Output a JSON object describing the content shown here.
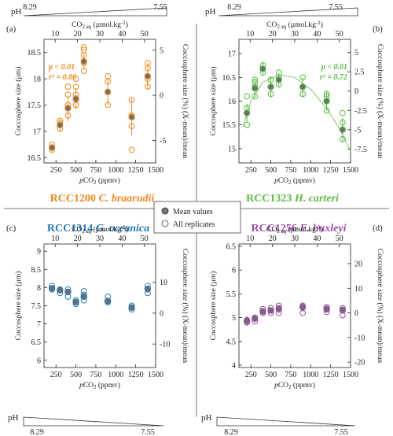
{
  "colors": {
    "orange": "#f08a1c",
    "green": "#5cba47",
    "blue": "#2a7ab8",
    "purple": "#9a4da6",
    "divider": "#777777"
  },
  "ph": {
    "label": "pH",
    "top_left": {
      "high": "8.29",
      "low": "7.55"
    },
    "top_right": {
      "high": "8.29",
      "low": "7.55"
    },
    "bottom_left": {
      "high": "8.29",
      "low": "7.55"
    },
    "bottom_right": {
      "high": "8.29",
      "low": "7.55"
    }
  },
  "legend": {
    "mean_label": "Mean values",
    "replicate_label": "All replicates"
  },
  "chart_data": [
    {
      "panel": "(a)",
      "type": "scatter",
      "color": "orange",
      "strain_code": "RCC1200",
      "species": "C. braarudii",
      "xlabel": "pCO2 (ppmv)",
      "top_xlabel": "CO2 aq (µmol.kg-1)",
      "ylabel": "Coccosphere size (µm)",
      "y2label": "Coccosphere size (%) (X-mean)/mean",
      "xlim": [
        100,
        1500
      ],
      "ylim": [
        16.4,
        18.75
      ],
      "y2lim": [
        -7.5,
        6.2
      ],
      "xticks": [
        250,
        500,
        750,
        1000,
        1250,
        1500
      ],
      "yticks": [
        16.5,
        17,
        17.5,
        18,
        18.5
      ],
      "y2ticks": [
        -5,
        0,
        5
      ],
      "top_ticks": [
        10,
        20,
        30,
        40,
        50
      ],
      "top_ticks_x": [
        340,
        700,
        1060,
        1420,
        1780
      ],
      "stats": {
        "p": "p < 0.01",
        "r2": "r² = 0.86"
      },
      "fit": "none",
      "means": {
        "x": [
          200,
          300,
          400,
          500,
          600,
          900,
          1200,
          1400
        ],
        "y": [
          16.69,
          17.12,
          17.44,
          17.62,
          18.33,
          17.75,
          17.27,
          18.05
        ],
        "err": [
          0.08,
          0.12,
          0.25,
          0.2,
          0.15,
          0.25,
          0.35,
          0.25
        ]
      },
      "replicates": {
        "x": [
          200,
          200,
          300,
          300,
          300,
          400,
          400,
          400,
          400,
          400,
          500,
          500,
          500,
          500,
          500,
          600,
          600,
          600,
          600,
          600,
          900,
          900,
          900,
          900,
          1200,
          1200,
          1200,
          1200,
          1400,
          1400,
          1400,
          1400
        ],
        "y": [
          16.65,
          16.75,
          17.05,
          17.15,
          17.2,
          17.3,
          17.45,
          17.5,
          17.7,
          17.85,
          17.5,
          17.6,
          17.7,
          17.85,
          18.0,
          18.15,
          18.3,
          18.45,
          18.55,
          18.6,
          17.5,
          17.75,
          17.95,
          18.05,
          16.65,
          17.1,
          17.3,
          17.6,
          17.85,
          18.0,
          18.2,
          18.3
        ]
      }
    },
    {
      "panel": "(b)",
      "type": "scatter",
      "color": "green",
      "strain_code": "RCC1323",
      "species": "H. carteri",
      "xlabel": "pCO2 (ppmv)",
      "top_xlabel": "CO2 aq (µmol.kg-1)",
      "ylabel": "Coccosphere size (µm)",
      "y2label": "Coccosphere size (%) (X-mean)/mean",
      "xlim": [
        100,
        1500
      ],
      "ylim": [
        14.7,
        17.3
      ],
      "y2lim": [
        -9.3,
        6.7
      ],
      "xticks": [
        250,
        500,
        750,
        1000,
        1250,
        1500
      ],
      "yticks": [
        15,
        15.5,
        16,
        16.5,
        17
      ],
      "y2ticks": [
        -7.5,
        -5,
        -2.5,
        0,
        2.5,
        5
      ],
      "top_ticks": [
        10,
        20,
        30,
        40,
        50
      ],
      "top_ticks_x": [
        340,
        700,
        1060,
        1420,
        1780
      ],
      "stats": {
        "p": "p < 0.01",
        "r2": "r² = 0.72"
      },
      "fit": "quadratic",
      "fit_curve": {
        "x": [
          150,
          250,
          400,
          600,
          800,
          1000,
          1200,
          1350,
          1500
        ],
        "y": [
          15.45,
          16.0,
          16.4,
          16.55,
          16.5,
          16.25,
          15.85,
          15.45,
          14.95
        ]
      },
      "means": {
        "x": [
          200,
          300,
          400,
          500,
          600,
          900,
          1200,
          1400
        ],
        "y": [
          15.75,
          16.27,
          16.68,
          16.3,
          16.45,
          16.3,
          16.0,
          15.4
        ],
        "err": [
          0.2,
          0.2,
          0.15,
          0.2,
          0.15,
          0.2,
          0.2,
          0.25
        ]
      },
      "replicates": {
        "x": [
          200,
          200,
          200,
          300,
          300,
          300,
          300,
          400,
          400,
          500,
          500,
          500,
          600,
          600,
          600,
          900,
          900,
          900,
          1200,
          1200,
          1200,
          1400,
          1400,
          1400,
          1400
        ],
        "y": [
          15.5,
          15.85,
          16.1,
          16.1,
          16.3,
          16.4,
          16.45,
          16.6,
          16.75,
          16.15,
          16.3,
          16.45,
          16.35,
          16.5,
          16.6,
          16.15,
          16.3,
          16.5,
          15.8,
          16.1,
          16.15,
          15.2,
          15.4,
          15.55,
          15.75
        ]
      }
    },
    {
      "panel": "(c)",
      "type": "scatter",
      "color": "blue",
      "strain_code": "RCC1314",
      "species": "G. oceanica",
      "xlabel": "pCO2 (ppmv)",
      "top_xlabel": "CO2 aq (µmol.kg-1)",
      "ylabel": "Coccosphere size (µm)",
      "y2label": "Coccosphere size (%) (X-mean)/mean",
      "xlim": [
        100,
        1500
      ],
      "ylim": [
        5.8,
        9.2
      ],
      "y2lim": [
        -17.6,
        22.4
      ],
      "xticks": [
        250,
        500,
        750,
        1000,
        1250,
        1500
      ],
      "yticks": [
        6,
        6.5,
        7,
        7.5,
        8,
        8.5,
        9
      ],
      "y2ticks": [
        -10,
        0,
        10
      ],
      "top_ticks": [
        10,
        20,
        30,
        40,
        50
      ],
      "top_ticks_x": [
        340,
        700,
        1060,
        1420,
        1780
      ],
      "stats": null,
      "fit": "none",
      "means": {
        "x": [
          200,
          300,
          400,
          500,
          600,
          900,
          1200,
          1400
        ],
        "y": [
          7.98,
          7.93,
          7.88,
          7.6,
          7.75,
          7.63,
          7.45,
          7.96
        ],
        "err": [
          0.05,
          0.05,
          0.08,
          0.05,
          0.08,
          0.05,
          0.04,
          0.1
        ]
      },
      "replicates": {
        "x": [
          200,
          200,
          300,
          300,
          400,
          400,
          500,
          500,
          600,
          600,
          600,
          900,
          900,
          1200,
          1200,
          1400,
          1400
        ],
        "y": [
          7.95,
          8.05,
          7.85,
          7.95,
          7.75,
          7.95,
          7.55,
          7.65,
          7.65,
          7.8,
          7.9,
          7.6,
          7.75,
          7.4,
          7.5,
          7.85,
          8.05
        ]
      }
    },
    {
      "panel": "(d)",
      "type": "scatter",
      "color": "purple",
      "strain_code": "RCC1256",
      "species": "E. huxleyi",
      "xlabel": "pCO2 (ppmv)",
      "top_xlabel": "CO2 aq (µmol.kg-1)",
      "ylabel": "Coccosphere size (µm)",
      "y2label": "Coccosphere size (%) (X-mean)/mean",
      "xlim": [
        100,
        1500
      ],
      "ylim": [
        3.95,
        6.55
      ],
      "y2lim": [
        -22.2,
        28.0
      ],
      "xticks": [
        250,
        500,
        750,
        1000,
        1250,
        1500
      ],
      "yticks": [
        4,
        4.5,
        5,
        5.5,
        6,
        6.5
      ],
      "y2ticks": [
        -20,
        -10,
        0,
        10,
        20
      ],
      "top_ticks": [
        10,
        20,
        30,
        40,
        50
      ],
      "top_ticks_x": [
        340,
        700,
        1060,
        1420,
        1780
      ],
      "stats": null,
      "fit": "none",
      "means": {
        "x": [
          200,
          300,
          400,
          500,
          600,
          900,
          1200,
          1400
        ],
        "y": [
          4.93,
          4.98,
          5.13,
          5.15,
          5.18,
          5.22,
          5.18,
          5.16
        ],
        "err": [
          0.1,
          0.08,
          0.06,
          0.06,
          0.08,
          0.1,
          0.08,
          0.08
        ]
      },
      "replicates": {
        "x": [
          200,
          200,
          300,
          300,
          400,
          400,
          500,
          500,
          600,
          600,
          600,
          900,
          900,
          1200,
          1200,
          1400,
          1400,
          1400
        ],
        "y": [
          4.9,
          4.95,
          4.92,
          5.0,
          5.1,
          5.18,
          5.1,
          5.2,
          5.1,
          5.2,
          5.25,
          5.1,
          5.25,
          5.12,
          5.22,
          5.05,
          5.15,
          5.2
        ]
      }
    }
  ]
}
